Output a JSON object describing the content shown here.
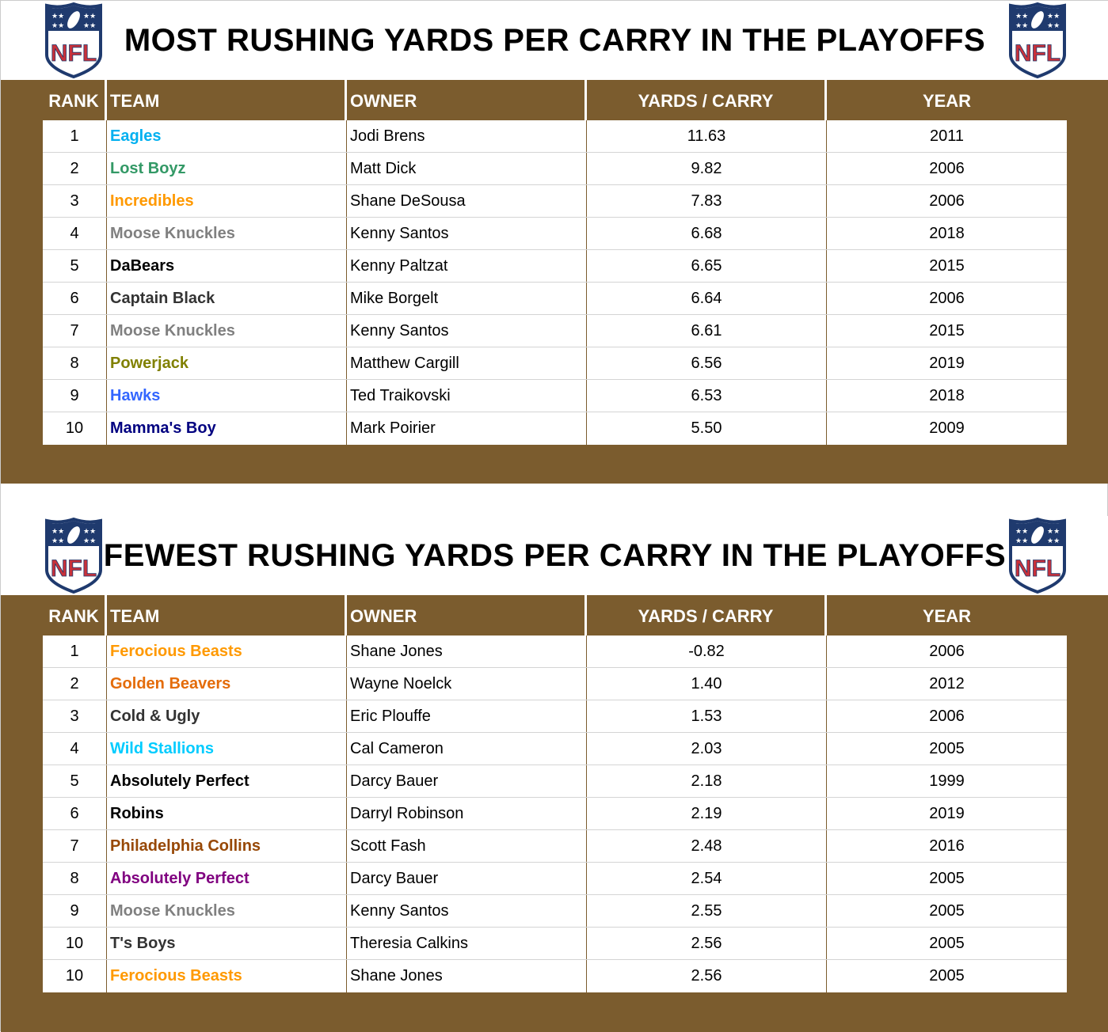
{
  "colors": {
    "band": "#7b5c2e",
    "header_text": "#ffffff"
  },
  "logo": {
    "icon": "nfl-shield-logo",
    "text": "NFL"
  },
  "columns": [
    "RANK",
    "TEAM",
    "OWNER",
    "YARDS / CARRY",
    "YEAR"
  ],
  "most": {
    "title": "MOST RUSHING YARDS PER CARRY IN THE PLAYOFFS",
    "rows": [
      {
        "rank": "1",
        "team": "Eagles",
        "team_color": "#00b0f0",
        "owner": "Jodi Brens",
        "ypc": "11.63",
        "year": "2011"
      },
      {
        "rank": "2",
        "team": "Lost Boyz",
        "team_color": "#339966",
        "owner": "Matt Dick",
        "ypc": "9.82",
        "year": "2006"
      },
      {
        "rank": "3",
        "team": "Incredibles",
        "team_color": "#ff9900",
        "owner": "Shane DeSousa",
        "ypc": "7.83",
        "year": "2006"
      },
      {
        "rank": "4",
        "team": "Moose Knuckles",
        "team_color": "#808080",
        "owner": "Kenny Santos",
        "ypc": "6.68",
        "year": "2018"
      },
      {
        "rank": "5",
        "team": "DaBears",
        "team_color": "#000000",
        "owner": "Kenny Paltzat",
        "ypc": "6.65",
        "year": "2015"
      },
      {
        "rank": "6",
        "team": "Captain Black",
        "team_color": "#333333",
        "owner": "Mike Borgelt",
        "ypc": "6.64",
        "year": "2006"
      },
      {
        "rank": "7",
        "team": "Moose Knuckles",
        "team_color": "#808080",
        "owner": "Kenny Santos",
        "ypc": "6.61",
        "year": "2015"
      },
      {
        "rank": "8",
        "team": "Powerjack",
        "team_color": "#808000",
        "owner": "Matthew Cargill",
        "ypc": "6.56",
        "year": "2019"
      },
      {
        "rank": "9",
        "team": "Hawks",
        "team_color": "#3366ff",
        "owner": "Ted Traikovski",
        "ypc": "6.53",
        "year": "2018"
      },
      {
        "rank": "10",
        "team": "Mamma's Boy",
        "team_color": "#000080",
        "owner": "Mark Poirier",
        "ypc": "5.50",
        "year": "2009"
      }
    ]
  },
  "fewest": {
    "title": "FEWEST RUSHING YARDS PER CARRY IN THE PLAYOFFS",
    "rows": [
      {
        "rank": "1",
        "team": "Ferocious Beasts",
        "team_color": "#ff9900",
        "owner": "Shane Jones",
        "ypc": "-0.82",
        "year": "2006"
      },
      {
        "rank": "2",
        "team": "Golden Beavers",
        "team_color": "#e46c0a",
        "owner": "Wayne Noelck",
        "ypc": "1.40",
        "year": "2012"
      },
      {
        "rank": "3",
        "team": "Cold & Ugly",
        "team_color": "#333333",
        "owner": "Eric Plouffe",
        "ypc": "1.53",
        "year": "2006"
      },
      {
        "rank": "4",
        "team": "Wild Stallions",
        "team_color": "#00ccff",
        "owner": "Cal Cameron",
        "ypc": "2.03",
        "year": "2005"
      },
      {
        "rank": "5",
        "team": "Absolutely Perfect",
        "team_color": "#000000",
        "owner": "Darcy Bauer",
        "ypc": "2.18",
        "year": "1999"
      },
      {
        "rank": "6",
        "team": "Robins",
        "team_color": "#000000",
        "owner": "Darryl Robinson",
        "ypc": "2.19",
        "year": "2019"
      },
      {
        "rank": "7",
        "team": "Philadelphia Collins",
        "team_color": "#974806",
        "owner": "Scott Fash",
        "ypc": "2.48",
        "year": "2016"
      },
      {
        "rank": "8",
        "team": "Absolutely Perfect",
        "team_color": "#800080",
        "owner": "Darcy Bauer",
        "ypc": "2.54",
        "year": "2005"
      },
      {
        "rank": "9",
        "team": "Moose Knuckles",
        "team_color": "#808080",
        "owner": "Kenny Santos",
        "ypc": "2.55",
        "year": "2005"
      },
      {
        "rank": "10",
        "team": "T's Boys",
        "team_color": "#333333",
        "owner": "Theresia Calkins",
        "ypc": "2.56",
        "year": "2005"
      },
      {
        "rank": "10",
        "team": "Ferocious Beasts",
        "team_color": "#ff9900",
        "owner": "Shane Jones",
        "ypc": "2.56",
        "year": "2005"
      }
    ]
  }
}
